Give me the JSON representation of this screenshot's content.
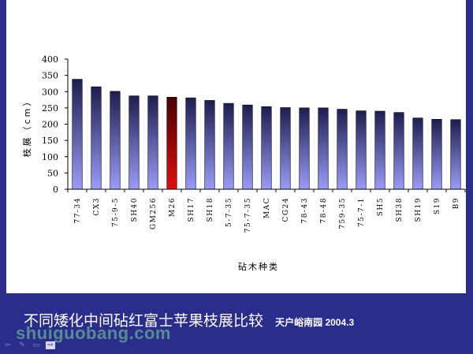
{
  "chart_data": {
    "type": "bar",
    "title": "",
    "xlabel": "砧木种类",
    "ylabel": "枝展（cm）",
    "ylim": [
      0,
      400
    ],
    "yticks": [
      0,
      50,
      100,
      150,
      200,
      250,
      300,
      350,
      400
    ],
    "categories": [
      "77-34",
      "CX3",
      "75-9-5",
      "SH40",
      "GM256",
      "M26",
      "SH17",
      "SH18",
      "5-7-35",
      "75-7-35",
      "MAC",
      "CG24",
      "78-43",
      "78-48",
      "759-35",
      "75-7-1",
      "SH5",
      "SH38",
      "SH19",
      "S19",
      "B9"
    ],
    "values": [
      338,
      315,
      301,
      287,
      287,
      283,
      281,
      273,
      264,
      259,
      254,
      251,
      250,
      250,
      246,
      241,
      240,
      236,
      219,
      215,
      214
    ],
    "highlight": "M26",
    "colors": {
      "bar_top": "#1e1e50",
      "bar_bottom": "#9a9cf8",
      "highlight_top": "#4a0000",
      "highlight_bottom": "#e01010"
    },
    "grid": false,
    "legend": "none"
  },
  "caption": {
    "title": "不同矮化中间砧红富士苹果枝展比较",
    "source": "天户峪南园 2004.3"
  },
  "watermark": "shuiguobang.com",
  "nav": {
    "icons": [
      "back-arrow-icon",
      "pen-icon",
      "menu-icon",
      "next-arrow-icon"
    ],
    "glyphs": [
      "⇦",
      "✎",
      "▭",
      "⇨"
    ]
  }
}
